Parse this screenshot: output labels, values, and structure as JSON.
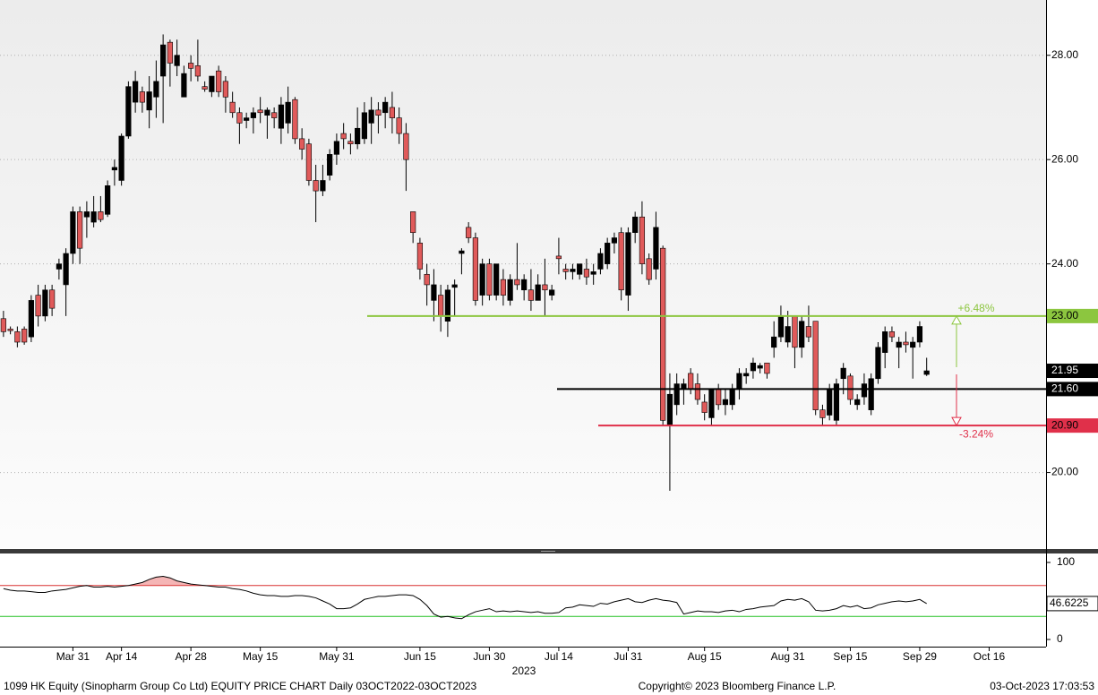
{
  "chart_data": {
    "type": "candlestick",
    "x": [
      0,
      1,
      2,
      3,
      4,
      5,
      6,
      7,
      8,
      9,
      10,
      11,
      12,
      13,
      14,
      15,
      16,
      17,
      18,
      19,
      20,
      21,
      22,
      23,
      24,
      25,
      26,
      27,
      28,
      29,
      30,
      31,
      32,
      33,
      34,
      35,
      36,
      37,
      38,
      39,
      40,
      41,
      42,
      43,
      44,
      45,
      46,
      47,
      48,
      49,
      50,
      51,
      52,
      53,
      54,
      55,
      56,
      57,
      58,
      59,
      60,
      61,
      62,
      63,
      64,
      65,
      66,
      67,
      68,
      69,
      70,
      71,
      72,
      73,
      74,
      75,
      76,
      77,
      78,
      79,
      80,
      81,
      82,
      83,
      84,
      85,
      86,
      87,
      88,
      89,
      90,
      91,
      92,
      93,
      94,
      95,
      96,
      97,
      98,
      99,
      100,
      101,
      102,
      103,
      104,
      105,
      106,
      107,
      108,
      109,
      110,
      111,
      112,
      113,
      114,
      115,
      116,
      117,
      118,
      119,
      120,
      121,
      122,
      123,
      124,
      125,
      126,
      127,
      128,
      129,
      130,
      131,
      132,
      133
    ],
    "open": [
      22.95,
      22.75,
      22.7,
      22.75,
      22.6,
      23.4,
      23.0,
      23.5,
      23.9,
      23.6,
      24.2,
      25.0,
      24.9,
      24.8,
      25.0,
      24.95,
      25.8,
      25.6,
      26.45,
      27.1,
      27.3,
      26.95,
      27.2,
      27.6,
      28.25,
      27.8,
      27.2,
      27.85,
      27.8,
      27.4,
      27.3,
      27.7,
      27.5,
      27.1,
      26.9,
      26.75,
      26.8,
      26.95,
      26.85,
      26.9,
      26.6,
      26.7,
      27.15,
      26.4,
      26.3,
      25.6,
      25.4,
      25.7,
      26.1,
      26.5,
      26.35,
      26.3,
      26.4,
      26.7,
      26.95,
      26.9,
      27.0,
      26.8,
      26.5,
      25.0,
      24.4,
      23.8,
      23.3,
      23.4,
      22.9,
      23.55,
      24.2,
      24.7,
      24.5,
      23.4,
      24.0,
      23.4,
      23.7,
      23.3,
      23.7,
      23.5,
      23.5,
      23.3,
      23.6,
      23.4,
      24.15,
      23.9,
      23.85,
      23.8,
      23.9,
      23.8,
      23.9,
      24.0,
      24.4,
      24.6,
      23.4,
      24.6,
      24.9,
      24.1,
      23.9,
      24.3,
      20.9,
      21.3,
      21.6,
      21.9,
      21.7,
      21.35,
      21.05,
      21.6,
      21.3,
      21.3,
      21.6,
      21.85,
      21.95,
      22.0,
      22.1,
      22.4,
      22.6,
      22.5,
      23.0,
      22.4,
      22.8,
      22.9,
      21.2,
      21.1,
      21.0,
      21.8,
      21.85,
      21.3,
      21.45,
      21.2,
      21.8,
      22.3,
      22.7,
      22.4,
      22.5,
      22.4,
      22.5,
      21.88
    ],
    "high": [
      23.1,
      22.8,
      22.8,
      22.8,
      23.4,
      23.6,
      23.6,
      23.6,
      24.1,
      24.3,
      25.1,
      25.1,
      25.2,
      25.3,
      25.3,
      25.6,
      26.0,
      26.5,
      27.5,
      27.7,
      27.4,
      27.6,
      27.9,
      28.4,
      28.3,
      28.3,
      27.8,
      28.0,
      28.3,
      27.5,
      27.6,
      27.8,
      27.6,
      27.3,
      27.0,
      26.9,
      27.0,
      27.2,
      27.0,
      27.0,
      27.2,
      27.4,
      27.2,
      26.6,
      26.4,
      25.9,
      25.9,
      26.2,
      26.5,
      26.7,
      26.5,
      27.0,
      27.1,
      27.2,
      27.1,
      27.2,
      27.3,
      27.0,
      26.7,
      25.0,
      24.5,
      24.0,
      23.9,
      23.6,
      23.6,
      23.7,
      24.3,
      24.8,
      24.6,
      24.1,
      24.1,
      24.0,
      23.9,
      23.8,
      24.4,
      23.8,
      23.9,
      23.8,
      24.1,
      23.6,
      24.5,
      24.0,
      24.0,
      24.0,
      24.1,
      24.0,
      24.3,
      24.5,
      24.6,
      24.7,
      24.7,
      25.0,
      25.2,
      24.2,
      25.0,
      24.35,
      21.9,
      21.9,
      21.8,
      22.0,
      21.9,
      21.5,
      21.6,
      21.7,
      21.6,
      21.7,
      22.0,
      22.0,
      22.2,
      22.1,
      22.1,
      22.9,
      23.2,
      23.1,
      23.0,
      23.0,
      23.2,
      22.9,
      21.3,
      21.7,
      21.8,
      22.1,
      21.9,
      21.5,
      21.9,
      21.9,
      22.5,
      22.8,
      22.8,
      22.6,
      22.7,
      22.6,
      22.9,
      22.2
    ],
    "low": [
      22.6,
      22.65,
      22.4,
      22.45,
      22.5,
      22.8,
      22.9,
      23.0,
      23.7,
      23.0,
      24.0,
      24.0,
      24.5,
      24.7,
      24.8,
      24.9,
      25.5,
      25.5,
      26.4,
      26.9,
      26.9,
      26.6,
      26.8,
      26.7,
      27.4,
      27.6,
      27.2,
      27.5,
      27.5,
      27.3,
      27.2,
      27.2,
      26.9,
      26.8,
      26.3,
      26.6,
      26.5,
      26.7,
      26.4,
      26.6,
      26.3,
      26.5,
      26.3,
      26.0,
      25.5,
      24.8,
      25.3,
      25.6,
      25.9,
      26.2,
      26.1,
      26.2,
      26.3,
      26.3,
      26.5,
      26.6,
      26.5,
      26.3,
      25.4,
      24.4,
      23.7,
      23.2,
      22.9,
      22.7,
      22.6,
      23.0,
      23.8,
      24.4,
      23.2,
      23.2,
      23.3,
      23.3,
      23.2,
      23.2,
      23.5,
      23.3,
      23.1,
      23.3,
      23.0,
      23.3,
      23.8,
      23.7,
      23.7,
      23.7,
      23.6,
      23.6,
      23.8,
      23.9,
      24.2,
      23.3,
      23.1,
      24.4,
      23.8,
      23.6,
      23.7,
      20.9,
      19.65,
      21.1,
      21.3,
      21.5,
      21.3,
      21.0,
      20.9,
      21.2,
      21.1,
      21.2,
      21.4,
      21.7,
      21.8,
      21.9,
      21.8,
      22.2,
      22.5,
      22.4,
      22.0,
      22.2,
      22.5,
      21.1,
      20.9,
      21.0,
      20.9,
      21.5,
      21.3,
      21.2,
      21.3,
      21.1,
      21.7,
      22.0,
      22.5,
      22.0,
      22.3,
      21.8,
      22.4,
      21.85
    ],
    "close": [
      22.7,
      22.72,
      22.5,
      22.5,
      23.3,
      23.0,
      23.5,
      23.15,
      24.0,
      24.2,
      25.0,
      24.3,
      25.0,
      25.0,
      24.85,
      25.5,
      25.85,
      26.45,
      27.4,
      27.5,
      27.1,
      27.3,
      27.5,
      28.2,
      27.85,
      28.0,
      27.65,
      27.75,
      27.6,
      27.35,
      27.6,
      27.3,
      27.2,
      26.9,
      26.7,
      26.8,
      26.9,
      26.9,
      26.95,
      26.8,
      27.05,
      27.1,
      26.4,
      26.2,
      25.6,
      25.4,
      25.6,
      26.1,
      26.35,
      26.4,
      26.3,
      26.6,
      26.9,
      26.95,
      26.85,
      27.1,
      26.8,
      26.5,
      26.0,
      24.6,
      23.9,
      23.6,
      23.6,
      23.0,
      23.5,
      23.6,
      24.25,
      24.5,
      23.3,
      24.0,
      23.4,
      24.0,
      23.4,
      23.7,
      23.6,
      23.7,
      23.3,
      23.6,
      23.5,
      23.5,
      24.1,
      23.85,
      23.9,
      24.0,
      23.75,
      23.85,
      24.2,
      24.4,
      24.5,
      23.5,
      24.6,
      24.9,
      24.0,
      23.7,
      24.7,
      21.0,
      21.5,
      21.7,
      21.7,
      21.6,
      21.4,
      21.15,
      21.6,
      21.3,
      21.4,
      21.6,
      21.9,
      21.9,
      22.1,
      22.05,
      21.9,
      22.6,
      23.0,
      22.8,
      22.4,
      22.9,
      22.6,
      21.2,
      21.05,
      21.6,
      21.7,
      22.0,
      21.4,
      21.4,
      21.7,
      21.8,
      22.4,
      22.7,
      22.6,
      22.5,
      22.45,
      22.5,
      22.8,
      21.95
    ],
    "up_color": "#000000",
    "down_color": "#e05a5a",
    "xlim": [
      -0.5,
      150.2
    ],
    "xticks": [
      {
        "value": 10,
        "label": "Mar 31"
      },
      {
        "value": 17,
        "label": "Apr 14"
      },
      {
        "value": 27,
        "label": "Apr 28"
      },
      {
        "value": 37,
        "label": "May 15"
      },
      {
        "value": 48,
        "label": "May 31"
      },
      {
        "value": 60,
        "label": "Jun 15"
      },
      {
        "value": 70,
        "label": "Jun 30"
      },
      {
        "value": 80,
        "label": "Jul 14"
      },
      {
        "value": 90,
        "label": "Jul 31"
      },
      {
        "value": 101,
        "label": "Aug 15"
      },
      {
        "value": 113,
        "label": "Aug 31"
      },
      {
        "value": 122,
        "label": "Sep 15"
      },
      {
        "value": 132,
        "label": "Sep 29"
      },
      {
        "value": 142,
        "label": "Oct 16"
      }
    ],
    "year_label": "2023",
    "ylim": [
      18.55,
      29.06
    ],
    "yticks": [
      {
        "value": 20,
        "label": "20.00"
      },
      {
        "value": 24,
        "label": "24.00"
      },
      {
        "value": 26,
        "label": "26.00"
      },
      {
        "value": 28,
        "label": "28.00"
      }
    ],
    "grid": true,
    "last_price": 21.95,
    "levels": [
      {
        "value": 23,
        "label": "23.00",
        "color": "#8cc63f",
        "annotation": "+6.48%"
      },
      {
        "value": 21.6,
        "label": "21.60",
        "color": "#000000"
      },
      {
        "value": 20.9,
        "label": "20.90",
        "color": "#e0304a",
        "annotation": "-3.24%"
      }
    ],
    "rsi": {
      "values": [
        66,
        64,
        63,
        63,
        62,
        61,
        61,
        63,
        64,
        65,
        67,
        69,
        70,
        68,
        68,
        69,
        68,
        69,
        70,
        72,
        74,
        78,
        81,
        82,
        80,
        76,
        74,
        72,
        71,
        70,
        69,
        68,
        68,
        66,
        65,
        63,
        60,
        58,
        57,
        57,
        56,
        56,
        57,
        57,
        56,
        54,
        50,
        46,
        40,
        40,
        41,
        46,
        52,
        54,
        56,
        56,
        57,
        58,
        58,
        57,
        52,
        44,
        33,
        29,
        30,
        28,
        27,
        32,
        36,
        38,
        40,
        36,
        37,
        36,
        37,
        36,
        35,
        36,
        34,
        34,
        35,
        41,
        42,
        45,
        44,
        43,
        47,
        46,
        49,
        51,
        53,
        49,
        48,
        51,
        53,
        51,
        50,
        48,
        33,
        35,
        37,
        36,
        36,
        35,
        37,
        38,
        36,
        39,
        40,
        42,
        43,
        44,
        50,
        52,
        51,
        53,
        49,
        38,
        37,
        38,
        40,
        44,
        42,
        44,
        40,
        41,
        45,
        47,
        49,
        50,
        49,
        50,
        52,
        46.6225
      ],
      "color": "#000000",
      "ylim": [
        -9.3,
        109.3
      ],
      "yticks": [
        0,
        100
      ],
      "upper": 70,
      "lower": 30,
      "upper_color": "#d93030",
      "lower_color": "#22c022",
      "fill_color": "#f5b5b5"
    },
    "footer": {
      "left": "1099 HK Equity (Sinopharm Group Co Ltd) EQUITY PRICE CHART  Daily 03OCT2022-03OCT2023",
      "center": "Copyright© 2023 Bloomberg Finance L.P.",
      "right": "03-Oct-2023 17:03:53"
    }
  }
}
